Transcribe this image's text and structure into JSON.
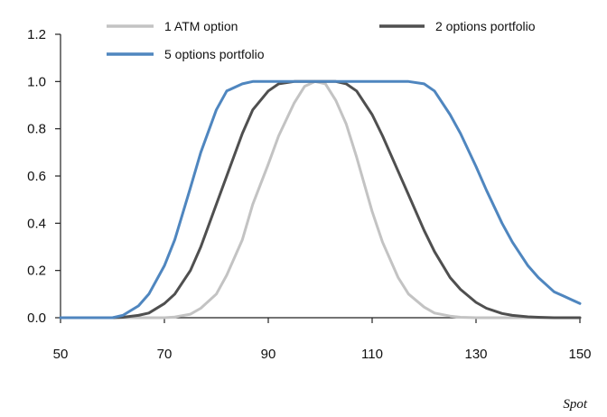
{
  "chart_data": {
    "type": "line",
    "title": "",
    "xlabel": "Spot",
    "ylabel": "",
    "xlim": [
      50,
      150
    ],
    "ylim": [
      0,
      1.2
    ],
    "xticks": [
      "50",
      "70",
      "90",
      "110",
      "130",
      "150"
    ],
    "yticks": [
      "0.0",
      "0.2",
      "0.4",
      "0.6",
      "0.8",
      "1.0",
      "1.2"
    ],
    "grid": false,
    "legend": "top",
    "x": [
      50,
      55,
      60,
      62,
      65,
      67,
      70,
      72,
      75,
      77,
      80,
      82,
      85,
      87,
      90,
      92,
      95,
      97,
      99,
      101,
      103,
      105,
      107,
      110,
      112,
      115,
      117,
      120,
      122,
      125,
      127,
      130,
      132,
      135,
      137,
      140,
      142,
      145,
      147,
      150
    ],
    "series": [
      {
        "name": "1 ATM option",
        "color": "#c3c3c3",
        "values": [
          0,
          0,
          0,
          0,
          0,
          0,
          0,
          0.003,
          0.015,
          0.04,
          0.1,
          0.18,
          0.33,
          0.48,
          0.65,
          0.77,
          0.91,
          0.98,
          1.0,
          0.99,
          0.92,
          0.82,
          0.68,
          0.45,
          0.32,
          0.17,
          0.1,
          0.045,
          0.02,
          0.007,
          0.002,
          0,
          0,
          0,
          0,
          0,
          0,
          0,
          0,
          0
        ]
      },
      {
        "name": "2 options portfolio",
        "color": "#4f4f4f",
        "values": [
          0,
          0,
          0,
          0.002,
          0.01,
          0.02,
          0.06,
          0.1,
          0.2,
          0.3,
          0.48,
          0.6,
          0.78,
          0.88,
          0.96,
          0.99,
          1.0,
          1.0,
          1.0,
          1.0,
          1.0,
          0.99,
          0.96,
          0.86,
          0.77,
          0.62,
          0.52,
          0.37,
          0.28,
          0.17,
          0.12,
          0.065,
          0.04,
          0.018,
          0.01,
          0.004,
          0.002,
          0,
          0,
          0
        ]
      },
      {
        "name": "5 options portfolio",
        "color": "#4f86bf",
        "values": [
          0,
          0,
          0,
          0.01,
          0.05,
          0.1,
          0.22,
          0.33,
          0.55,
          0.7,
          0.88,
          0.96,
          0.99,
          1.0,
          1.0,
          1.0,
          1.0,
          1.0,
          1.0,
          1.0,
          1.0,
          1.0,
          1.0,
          1.0,
          1.0,
          1.0,
          1.0,
          0.99,
          0.96,
          0.86,
          0.78,
          0.64,
          0.54,
          0.4,
          0.32,
          0.22,
          0.17,
          0.11,
          0.09,
          0.06
        ]
      }
    ]
  }
}
